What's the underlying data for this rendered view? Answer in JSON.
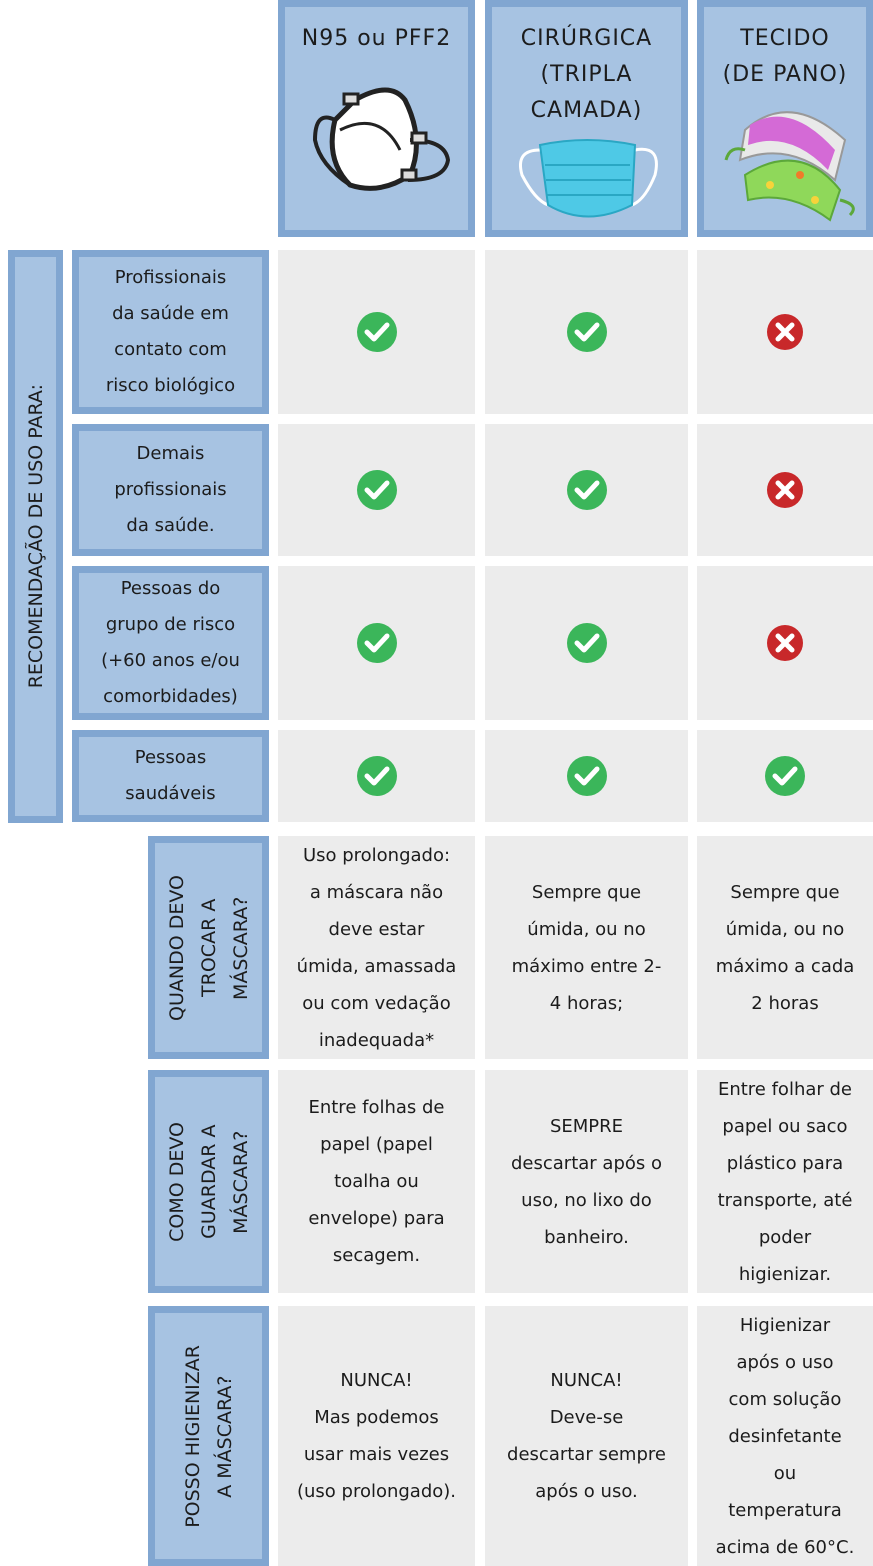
{
  "columns": [
    {
      "title_lines": [
        "N95 ou PFF2"
      ]
    },
    {
      "title_lines": [
        "CIRÚRGICA",
        "(TRIPLA",
        "CAMADA)"
      ]
    },
    {
      "title_lines": [
        "TECIDO",
        "(DE PANO)"
      ]
    }
  ],
  "recommendation": {
    "label": "RECOMENDAÇÃO DE USO PARA:",
    "rows": [
      {
        "label_lines": [
          "Profissionais",
          "da saúde em",
          "contato com",
          "risco biológico"
        ],
        "recommended": [
          true,
          true,
          false
        ]
      },
      {
        "label_lines": [
          "Demais",
          "profissionais",
          "da saúde."
        ],
        "recommended": [
          true,
          true,
          false
        ]
      },
      {
        "label_lines": [
          "Pessoas do",
          "grupo de risco",
          "(+60 anos e/ou",
          "comorbidades)"
        ],
        "recommended": [
          true,
          true,
          false
        ]
      },
      {
        "label_lines": [
          "Pessoas",
          "saudáveis"
        ],
        "recommended": [
          true,
          true,
          true
        ]
      }
    ]
  },
  "questions": [
    {
      "label_lines": [
        "QUANDO DEVO",
        "TROCAR A",
        "MÁSCARA?"
      ],
      "answers": [
        [
          "Uso prolongado:",
          "a máscara não",
          "deve estar",
          "úmida, amassada",
          "ou com vedação",
          "inadequada*"
        ],
        [
          "Sempre que",
          "úmida, ou no",
          "máximo entre 2-",
          "4 horas;"
        ],
        [
          "Sempre que",
          "úmida, ou  no",
          "máximo a cada",
          "2 horas"
        ]
      ]
    },
    {
      "label_lines": [
        "COMO DEVO",
        "GUARDAR A",
        "MÁSCARA?"
      ],
      "answers": [
        [
          "Entre folhas de",
          "papel (papel",
          "toalha ou",
          "envelope) para",
          "secagem."
        ],
        [
          "SEMPRE",
          "descartar após o",
          "uso, no lixo do",
          "banheiro."
        ],
        [
          "Entre folhar de",
          "papel ou saco",
          "plástico para",
          "transporte, até",
          "poder",
          "higienizar."
        ]
      ]
    },
    {
      "label_lines": [
        "POSSO HIGIENIZAR",
        "A MÁSCARA?"
      ],
      "answers": [
        [
          "NUNCA!",
          "Mas podemos",
          "usar mais vezes",
          "(uso prolongado)."
        ],
        [
          "NUNCA!",
          "Deve-se",
          "descartar sempre",
          "após o uso."
        ],
        [
          "Higienizar",
          "após o uso",
          "com solução",
          "desinfetante",
          "ou",
          "temperatura",
          "acima de 60°C."
        ]
      ]
    }
  ]
}
